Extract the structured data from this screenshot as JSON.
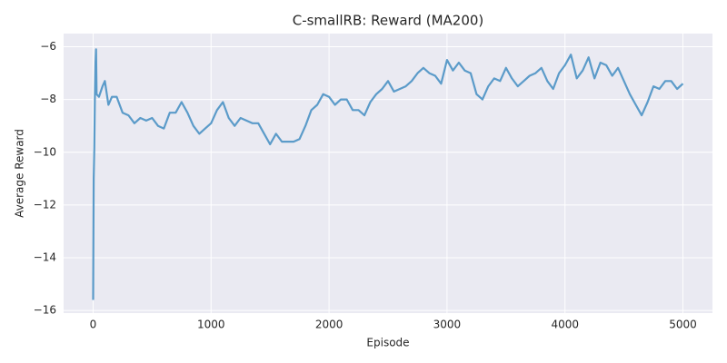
{
  "chart_data": {
    "type": "line",
    "title": "C-smallRB: Reward (MA200)",
    "x_label": "Episode",
    "y_label": "Average Reward",
    "x": [
      0,
      5,
      10,
      15,
      20,
      25,
      30,
      50,
      80,
      100,
      130,
      160,
      200,
      250,
      300,
      350,
      400,
      450,
      500,
      550,
      600,
      650,
      700,
      750,
      800,
      850,
      900,
      950,
      1000,
      1050,
      1100,
      1150,
      1200,
      1250,
      1300,
      1350,
      1400,
      1450,
      1500,
      1550,
      1600,
      1650,
      1700,
      1750,
      1800,
      1850,
      1900,
      1950,
      2000,
      2050,
      2100,
      2150,
      2200,
      2250,
      2300,
      2350,
      2400,
      2450,
      2500,
      2550,
      2600,
      2650,
      2700,
      2750,
      2800,
      2850,
      2900,
      2950,
      3000,
      3050,
      3100,
      3150,
      3200,
      3250,
      3300,
      3350,
      3400,
      3450,
      3500,
      3550,
      3600,
      3650,
      3700,
      3750,
      3800,
      3850,
      3900,
      3950,
      4000,
      4050,
      4100,
      4150,
      4200,
      4250,
      4300,
      4350,
      4400,
      4450,
      4500,
      4550,
      4600,
      4650,
      4700,
      4750,
      4800,
      4850,
      4900,
      4950,
      5000
    ],
    "series": [
      {
        "name": "Average Reward",
        "color": "#5b9bc9",
        "values": [
          -15.6,
          -11,
          -9.8,
          -8,
          -6.6,
          -6.1,
          -7.8,
          -7.9,
          -7.5,
          -7.3,
          -8.2,
          -7.9,
          -7.9,
          -8.5,
          -8.6,
          -8.9,
          -8.7,
          -8.8,
          -8.7,
          -9.0,
          -9.1,
          -8.5,
          -8.5,
          -8.1,
          -8.5,
          -9.0,
          -9.3,
          -9.1,
          -8.9,
          -8.4,
          -8.1,
          -8.7,
          -9.0,
          -8.7,
          -8.8,
          -8.9,
          -8.9,
          -9.3,
          -9.7,
          -9.3,
          -9.6,
          -9.6,
          -9.6,
          -9.5,
          -9.0,
          -8.4,
          -8.2,
          -7.8,
          -7.9,
          -8.2,
          -8.0,
          -8.0,
          -8.4,
          -8.4,
          -8.6,
          -8.1,
          -7.8,
          -7.6,
          -7.3,
          -7.7,
          -7.6,
          -7.5,
          -7.3,
          -7.0,
          -6.8,
          -7.0,
          -7.1,
          -7.4,
          -6.5,
          -6.9,
          -6.6,
          -6.9,
          -7.0,
          -7.8,
          -8.0,
          -7.5,
          -7.2,
          -7.3,
          -6.8,
          -7.2,
          -7.5,
          -7.3,
          -7.1,
          -7.0,
          -6.8,
          -7.3,
          -7.6,
          -7.0,
          -6.7,
          -6.3,
          -7.2,
          -6.9,
          -6.4,
          -7.2,
          -6.6,
          -6.7,
          -7.1,
          -6.8,
          -7.3,
          -7.8,
          -8.2,
          -8.6,
          -8.1,
          -7.5,
          -7.6,
          -7.3,
          -7.3,
          -7.6,
          -7.4
        ]
      }
    ],
    "xlim": [
      -250,
      5250
    ],
    "ylim": [
      -16.1,
      -5.5
    ],
    "xticks": [
      0,
      1000,
      2000,
      3000,
      4000,
      5000
    ],
    "yticks": [
      {
        "value": -16,
        "label": "−16"
      },
      {
        "value": -14,
        "label": "−14"
      },
      {
        "value": -12,
        "label": "−12"
      },
      {
        "value": -10,
        "label": "−10"
      },
      {
        "value": -8,
        "label": "−8"
      },
      {
        "value": -6,
        "label": "−6"
      }
    ],
    "grid": true
  }
}
